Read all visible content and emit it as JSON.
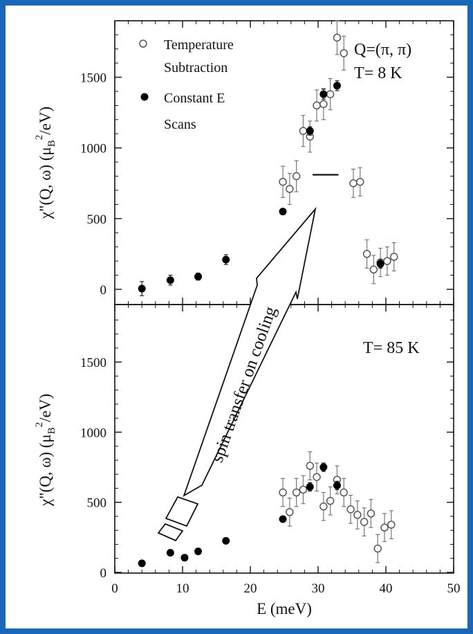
{
  "chart_data": [
    {
      "type": "scatter",
      "panel": "top",
      "annotation_q": "Q=(π, π)",
      "annotation_t": "T= 8 K",
      "ylabel_main": "χ\"(Q, ω) (μ",
      "ylabel_sub": "B",
      "ylabel_sup": "2",
      "ylabel_tail": "/eV)",
      "ylim": [
        0,
        1900
      ],
      "yticks": [
        0,
        500,
        1000,
        1500
      ],
      "xlim": [
        0,
        50
      ],
      "legend": [
        {
          "marker": "open-circle",
          "line1": "Temperature",
          "line2": "Subtraction"
        },
        {
          "marker": "filled-circle",
          "line1": "Constant E",
          "line2": "Scans"
        }
      ],
      "series": [
        {
          "name": "Temperature Subtraction",
          "marker": "open-circle",
          "points": [
            {
              "x": 24.8,
              "y": 760,
              "err": 110
            },
            {
              "x": 25.8,
              "y": 710,
              "err": 110
            },
            {
              "x": 26.8,
              "y": 800,
              "err": 110
            },
            {
              "x": 27.8,
              "y": 1120,
              "err": 110
            },
            {
              "x": 28.8,
              "y": 1080,
              "err": 110
            },
            {
              "x": 29.8,
              "y": 1300,
              "err": 110
            },
            {
              "x": 30.8,
              "y": 1310,
              "err": 110
            },
            {
              "x": 31.8,
              "y": 1380,
              "err": 110
            },
            {
              "x": 32.8,
              "y": 1780,
              "err": 120
            },
            {
              "x": 33.8,
              "y": 1670,
              "err": 120
            },
            {
              "x": 35.2,
              "y": 750,
              "err": 100
            },
            {
              "x": 36.2,
              "y": 760,
              "err": 100
            },
            {
              "x": 37.2,
              "y": 250,
              "err": 100
            },
            {
              "x": 38.2,
              "y": 140,
              "err": 100
            },
            {
              "x": 39.2,
              "y": 190,
              "err": 100
            },
            {
              "x": 40.2,
              "y": 200,
              "err": 100
            },
            {
              "x": 41.2,
              "y": 230,
              "err": 100
            }
          ]
        },
        {
          "name": "Constant E Scans",
          "marker": "filled-circle",
          "points": [
            {
              "x": 4.0,
              "y": 5,
              "err": 50
            },
            {
              "x": 8.2,
              "y": 65,
              "err": 35
            },
            {
              "x": 12.3,
              "y": 90,
              "err": 25
            },
            {
              "x": 16.4,
              "y": 210,
              "err": 35
            },
            {
              "x": 24.8,
              "y": 550,
              "err": 15
            },
            {
              "x": 28.8,
              "y": 1120,
              "err": 30
            },
            {
              "x": 30.8,
              "y": 1380,
              "err": 35
            },
            {
              "x": 32.8,
              "y": 1440,
              "err": 35
            },
            {
              "x": 39.2,
              "y": 180,
              "err": 30
            }
          ]
        }
      ],
      "segment": {
        "x1": 29.2,
        "x2": 33.0,
        "y": 810
      }
    },
    {
      "type": "scatter",
      "panel": "bottom",
      "annotation_t": "T= 85 K",
      "ylabel_main": "χ\"(Q, ω) (μ",
      "ylabel_sub": "B",
      "ylabel_sup": "2",
      "ylabel_tail": "/eV)",
      "xlabel": "E (meV)",
      "ylim": [
        0,
        1900
      ],
      "yticks": [
        0,
        500,
        1000,
        1500
      ],
      "xlim": [
        0,
        50
      ],
      "xticks": [
        0,
        10,
        20,
        30,
        40,
        50
      ],
      "series": [
        {
          "name": "Temperature Subtraction",
          "marker": "open-circle",
          "points": [
            {
              "x": 24.8,
              "y": 570,
              "err": 100
            },
            {
              "x": 25.8,
              "y": 430,
              "err": 100
            },
            {
              "x": 26.8,
              "y": 570,
              "err": 100
            },
            {
              "x": 27.8,
              "y": 590,
              "err": 100
            },
            {
              "x": 28.8,
              "y": 760,
              "err": 100
            },
            {
              "x": 29.8,
              "y": 680,
              "err": 100
            },
            {
              "x": 30.8,
              "y": 470,
              "err": 100
            },
            {
              "x": 31.8,
              "y": 510,
              "err": 100
            },
            {
              "x": 32.8,
              "y": 660,
              "err": 100
            },
            {
              "x": 33.8,
              "y": 570,
              "err": 100
            },
            {
              "x": 34.8,
              "y": 450,
              "err": 100
            },
            {
              "x": 35.8,
              "y": 410,
              "err": 100
            },
            {
              "x": 36.8,
              "y": 360,
              "err": 100
            },
            {
              "x": 37.8,
              "y": 420,
              "err": 100
            },
            {
              "x": 38.8,
              "y": 170,
              "err": 100
            },
            {
              "x": 39.8,
              "y": 320,
              "err": 100
            },
            {
              "x": 40.8,
              "y": 340,
              "err": 100
            }
          ]
        },
        {
          "name": "Constant E Scans",
          "marker": "filled-circle",
          "points": [
            {
              "x": 4.0,
              "y": 65,
              "err": 0
            },
            {
              "x": 8.2,
              "y": 140,
              "err": 0
            },
            {
              "x": 10.3,
              "y": 105,
              "err": 0
            },
            {
              "x": 12.3,
              "y": 150,
              "err": 0
            },
            {
              "x": 16.4,
              "y": 225,
              "err": 0
            },
            {
              "x": 24.8,
              "y": 380,
              "err": 0
            },
            {
              "x": 28.8,
              "y": 610,
              "err": 30
            },
            {
              "x": 30.8,
              "y": 750,
              "err": 30
            },
            {
              "x": 32.8,
              "y": 620,
              "err": 30
            }
          ]
        }
      ]
    }
  ],
  "arrow_label": "spin transfer on cooling"
}
